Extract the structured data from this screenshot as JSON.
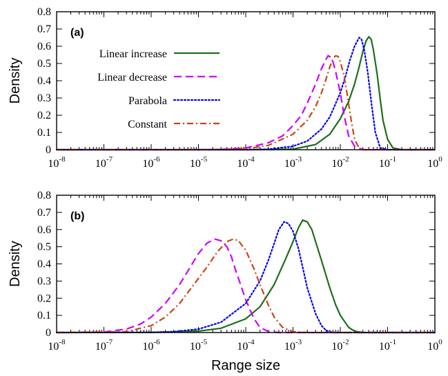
{
  "chart_data": [
    {
      "type": "line",
      "panel_label": "(a)",
      "ylabel": "Density",
      "xlabel": "",
      "xscale": "log",
      "xlim": [
        1e-08,
        1
      ],
      "ylim": [
        0,
        0.8
      ],
      "x_tick_exponents": [
        -8,
        -7,
        -6,
        -5,
        -4,
        -3,
        -2,
        -1,
        0
      ],
      "y_ticks": [
        "0",
        "0.1",
        "0.2",
        "0.3",
        "0.4",
        "0.5",
        "0.6",
        "0.7",
        "0.8"
      ],
      "legend_position": "left",
      "series": [
        {
          "name": "Linear increase",
          "color": "#1a6e1a",
          "dash": "solid",
          "points": [
            [
              1e-08,
              0
            ],
            [
              0.0001,
              0
            ],
            [
              0.001,
              0.003
            ],
            [
              0.003,
              0.03
            ],
            [
              0.006,
              0.09
            ],
            [
              0.01,
              0.18
            ],
            [
              0.015,
              0.28
            ],
            [
              0.02,
              0.38
            ],
            [
              0.025,
              0.48
            ],
            [
              0.03,
              0.57
            ],
            [
              0.035,
              0.63
            ],
            [
              0.04,
              0.655
            ],
            [
              0.045,
              0.64
            ],
            [
              0.05,
              0.58
            ],
            [
              0.06,
              0.44
            ],
            [
              0.07,
              0.29
            ],
            [
              0.08,
              0.17
            ],
            [
              0.1,
              0.06
            ],
            [
              0.13,
              0.01
            ],
            [
              0.2,
              0
            ],
            [
              1,
              0
            ]
          ]
        },
        {
          "name": "Linear decrease",
          "color": "#cc00ff",
          "dash": "dash",
          "points": [
            [
              1e-08,
              0
            ],
            [
              1e-05,
              0
            ],
            [
              3e-05,
              0.002
            ],
            [
              0.0001,
              0.01
            ],
            [
              0.0003,
              0.04
            ],
            [
              0.0006,
              0.08
            ],
            [
              0.001,
              0.14
            ],
            [
              0.0015,
              0.2
            ],
            [
              0.002,
              0.27
            ],
            [
              0.003,
              0.38
            ],
            [
              0.004,
              0.47
            ],
            [
              0.005,
              0.525
            ],
            [
              0.0055,
              0.545
            ],
            [
              0.006,
              0.54
            ],
            [
              0.007,
              0.51
            ],
            [
              0.008,
              0.45
            ],
            [
              0.01,
              0.33
            ],
            [
              0.012,
              0.2
            ],
            [
              0.015,
              0.08
            ],
            [
              0.02,
              0.02
            ],
            [
              0.03,
              0
            ],
            [
              1,
              0
            ]
          ]
        },
        {
          "name": "Parabola",
          "color": "#0000ee",
          "dash": "dot",
          "points": [
            [
              1e-08,
              0
            ],
            [
              0.0001,
              0
            ],
            [
              0.0003,
              0.003
            ],
            [
              0.001,
              0.02
            ],
            [
              0.002,
              0.05
            ],
            [
              0.004,
              0.12
            ],
            [
              0.006,
              0.19
            ],
            [
              0.01,
              0.33
            ],
            [
              0.013,
              0.43
            ],
            [
              0.016,
              0.52
            ],
            [
              0.02,
              0.6
            ],
            [
              0.025,
              0.65
            ],
            [
              0.028,
              0.64
            ],
            [
              0.032,
              0.58
            ],
            [
              0.038,
              0.45
            ],
            [
              0.045,
              0.28
            ],
            [
              0.055,
              0.1
            ],
            [
              0.07,
              0.01
            ],
            [
              0.1,
              0
            ],
            [
              1,
              0
            ]
          ]
        },
        {
          "name": "Constant",
          "color": "#cc4411",
          "dash": "dashdot",
          "points": [
            [
              1e-08,
              0
            ],
            [
              1e-05,
              0
            ],
            [
              0.0001,
              0.005
            ],
            [
              0.0003,
              0.025
            ],
            [
              0.001,
              0.09
            ],
            [
              0.002,
              0.17
            ],
            [
              0.003,
              0.25
            ],
            [
              0.004,
              0.33
            ],
            [
              0.005,
              0.41
            ],
            [
              0.006,
              0.48
            ],
            [
              0.007,
              0.53
            ],
            [
              0.008,
              0.545
            ],
            [
              0.009,
              0.54
            ],
            [
              0.01,
              0.51
            ],
            [
              0.012,
              0.43
            ],
            [
              0.014,
              0.32
            ],
            [
              0.017,
              0.17
            ],
            [
              0.02,
              0.06
            ],
            [
              0.025,
              0.01
            ],
            [
              0.03,
              0
            ],
            [
              1,
              0
            ]
          ]
        }
      ]
    },
    {
      "type": "line",
      "panel_label": "(b)",
      "ylabel": "Density",
      "xlabel": "Range size",
      "xscale": "log",
      "xlim": [
        1e-08,
        1
      ],
      "ylim": [
        0,
        0.8
      ],
      "x_tick_exponents": [
        -8,
        -7,
        -6,
        -5,
        -4,
        -3,
        -2,
        -1,
        0
      ],
      "y_ticks": [
        "0",
        "0.1",
        "0.2",
        "0.3",
        "0.4",
        "0.5",
        "0.6",
        "0.7",
        "0.8"
      ],
      "series": [
        {
          "name": "Linear increase",
          "color": "#1a6e1a",
          "dash": "solid",
          "points": [
            [
              1e-08,
              0
            ],
            [
              1e-06,
              0.001
            ],
            [
              1e-05,
              0.008
            ],
            [
              3e-05,
              0.025
            ],
            [
              0.0001,
              0.08
            ],
            [
              0.0002,
              0.15
            ],
            [
              0.0004,
              0.28
            ],
            [
              0.0007,
              0.43
            ],
            [
              0.001,
              0.53
            ],
            [
              0.0013,
              0.61
            ],
            [
              0.0016,
              0.655
            ],
            [
              0.002,
              0.645
            ],
            [
              0.0025,
              0.6
            ],
            [
              0.003,
              0.53
            ],
            [
              0.004,
              0.42
            ],
            [
              0.006,
              0.26
            ],
            [
              0.008,
              0.16
            ],
            [
              0.01,
              0.1
            ],
            [
              0.015,
              0.03
            ],
            [
              0.02,
              0.008
            ],
            [
              0.03,
              0
            ],
            [
              1,
              0
            ]
          ]
        },
        {
          "name": "Linear decrease",
          "color": "#cc00ff",
          "dash": "dash",
          "points": [
            [
              1e-08,
              0
            ],
            [
              1e-07,
              0.003
            ],
            [
              3e-07,
              0.02
            ],
            [
              6e-07,
              0.05
            ],
            [
              1e-06,
              0.09
            ],
            [
              2e-06,
              0.17
            ],
            [
              4e-06,
              0.28
            ],
            [
              7e-06,
              0.39
            ],
            [
              1e-05,
              0.46
            ],
            [
              1.5e-05,
              0.52
            ],
            [
              2.2e-05,
              0.545
            ],
            [
              3e-05,
              0.535
            ],
            [
              4e-05,
              0.5
            ],
            [
              5e-05,
              0.44
            ],
            [
              6e-05,
              0.37
            ],
            [
              8e-05,
              0.27
            ],
            [
              0.0001,
              0.19
            ],
            [
              0.00015,
              0.08
            ],
            [
              0.0002,
              0.03
            ],
            [
              0.0003,
              0.006
            ],
            [
              0.0005,
              0
            ],
            [
              1,
              0
            ]
          ]
        },
        {
          "name": "Parabola",
          "color": "#0000ee",
          "dash": "dot",
          "points": [
            [
              1e-08,
              0
            ],
            [
              1e-06,
              0.001
            ],
            [
              3e-06,
              0.005
            ],
            [
              1e-05,
              0.02
            ],
            [
              3e-05,
              0.06
            ],
            [
              0.0001,
              0.17
            ],
            [
              0.0002,
              0.3
            ],
            [
              0.0003,
              0.42
            ],
            [
              0.0004,
              0.52
            ],
            [
              0.0005,
              0.6
            ],
            [
              0.00065,
              0.645
            ],
            [
              0.0008,
              0.635
            ],
            [
              0.001,
              0.59
            ],
            [
              0.0013,
              0.49
            ],
            [
              0.0016,
              0.38
            ],
            [
              0.002,
              0.26
            ],
            [
              0.003,
              0.11
            ],
            [
              0.004,
              0.04
            ],
            [
              0.005,
              0.012
            ],
            [
              0.007,
              0
            ],
            [
              1,
              0
            ]
          ]
        },
        {
          "name": "Constant",
          "color": "#cc4411",
          "dash": "dashdot",
          "points": [
            [
              1e-08,
              0
            ],
            [
              3e-07,
              0.005
            ],
            [
              1e-06,
              0.04
            ],
            [
              2e-06,
              0.09
            ],
            [
              4e-06,
              0.17
            ],
            [
              8e-06,
              0.28
            ],
            [
              1.5e-05,
              0.38
            ],
            [
              2.5e-05,
              0.47
            ],
            [
              4e-05,
              0.53
            ],
            [
              5.5e-05,
              0.545
            ],
            [
              7e-05,
              0.535
            ],
            [
              0.0001,
              0.48
            ],
            [
              0.00015,
              0.37
            ],
            [
              0.0002,
              0.28
            ],
            [
              0.0003,
              0.16
            ],
            [
              0.0004,
              0.09
            ],
            [
              0.0006,
              0.03
            ],
            [
              0.001,
              0.005
            ],
            [
              0.002,
              0
            ],
            [
              1,
              0
            ]
          ]
        }
      ]
    }
  ]
}
